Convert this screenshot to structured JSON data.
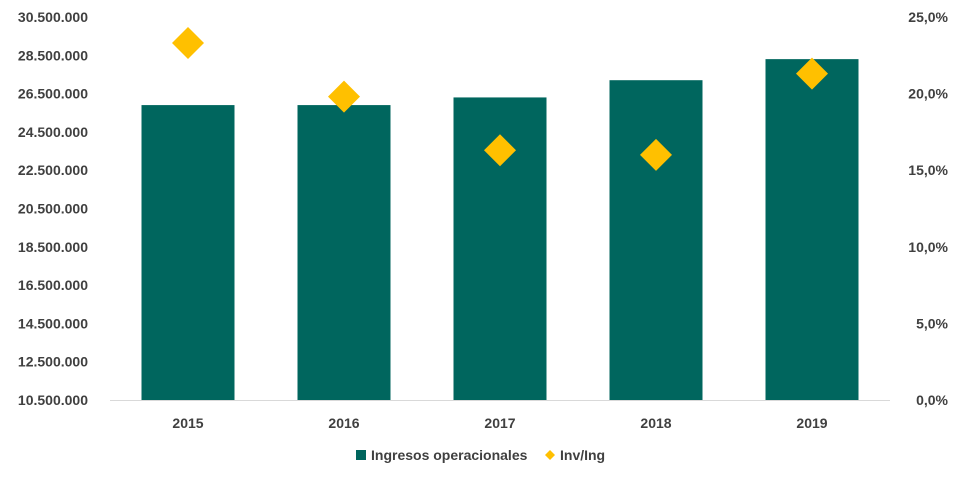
{
  "chart_data": {
    "type": "bar",
    "categories": [
      "2015",
      "2016",
      "2017",
      "2018",
      "2019"
    ],
    "series": [
      {
        "name": "Ingresos operacionales",
        "type": "bar",
        "axis": "left",
        "color": "#00665E",
        "values": [
          25900000,
          25900000,
          26300000,
          27200000,
          28300000
        ]
      },
      {
        "name": "Inv/Ing",
        "type": "scatter",
        "marker": "diamond",
        "axis": "right",
        "color": "#FFC000",
        "values": [
          23.3,
          19.8,
          16.3,
          16.0,
          21.3
        ]
      }
    ],
    "y_left": {
      "ylim": [
        10500000,
        30500000
      ],
      "ticks": [
        10500000,
        12500000,
        14500000,
        16500000,
        18500000,
        20500000,
        22500000,
        24500000,
        26500000,
        28500000,
        30500000
      ],
      "tick_labels": [
        "10.500.000",
        "12.500.000",
        "14.500.000",
        "16.500.000",
        "18.500.000",
        "20.500.000",
        "22.500.000",
        "24.500.000",
        "26.500.000",
        "28.500.000",
        "30.500.000"
      ]
    },
    "y_right": {
      "ylim": [
        0,
        25
      ],
      "ticks": [
        0,
        5,
        10,
        15,
        20,
        25
      ],
      "tick_labels": [
        "0,0%",
        "5,0%",
        "10,0%",
        "15,0%",
        "20,0%",
        "25,0%"
      ]
    },
    "grid": false,
    "legend": "bottom"
  }
}
